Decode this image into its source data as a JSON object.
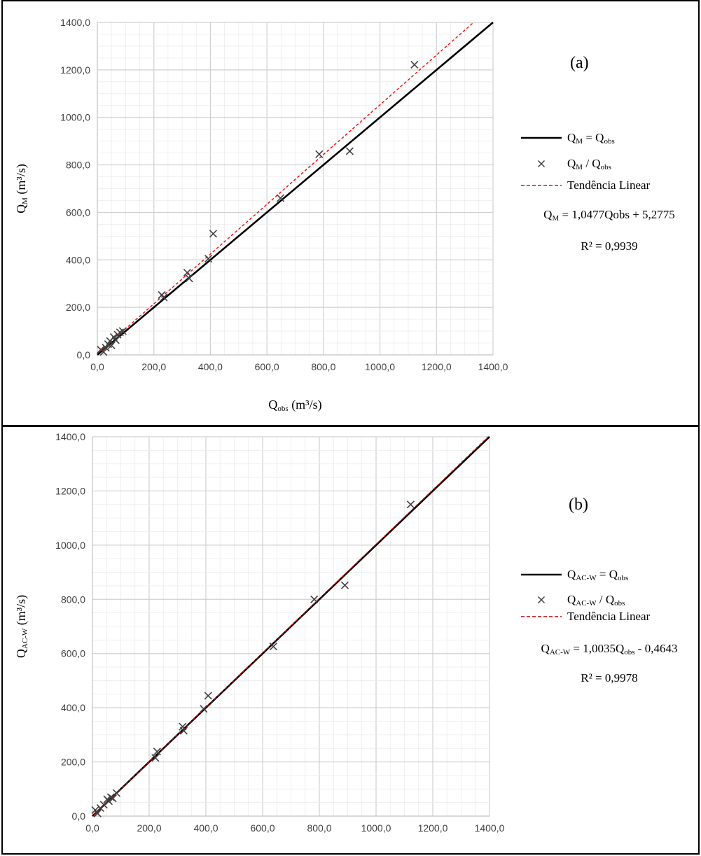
{
  "chart_data": [
    {
      "type": "scatter",
      "panel_label": "(a)",
      "x_axis": {
        "label_main": "Q",
        "label_sub": "obs",
        "label_unit": " (m³/s)",
        "range": [
          0,
          1400
        ],
        "ticks": [
          "0,0",
          "200,0",
          "400,0",
          "600,0",
          "800,0",
          "1000,0",
          "1200,0",
          "1400,0"
        ]
      },
      "y_axis": {
        "label_main": "Q",
        "label_sub": "M",
        "label_unit": " (m³/s)",
        "range": [
          0,
          1400
        ],
        "ticks": [
          "0,0",
          "200,0",
          "400,0",
          "600,0",
          "800,0",
          "1000,0",
          "1200,0",
          "1400,0"
        ]
      },
      "grid": true,
      "legend": {
        "identity": {
          "main": "Q",
          "sub": "M",
          "rest": " = Q",
          "sub2": "obs"
        },
        "points": {
          "main": "Q",
          "sub": "M",
          "rest": " / Q",
          "sub2": "obs"
        },
        "trend": "Tendência Linear",
        "equation": {
          "main": "Q",
          "sub": "M",
          "rest": " = 1,0477Qobs + 5,2775"
        },
        "r2": "R² = 0,9939"
      },
      "identity_line": {
        "slope": 1,
        "intercept": 0,
        "color": "#000000"
      },
      "trend_line": {
        "slope": 1.0477,
        "intercept": 5.2775,
        "color": "#ff0000"
      },
      "points": [
        {
          "x": 12,
          "y": 22
        },
        {
          "x": 22,
          "y": 12
        },
        {
          "x": 30,
          "y": 30
        },
        {
          "x": 38,
          "y": 45
        },
        {
          "x": 45,
          "y": 58
        },
        {
          "x": 50,
          "y": 40
        },
        {
          "x": 58,
          "y": 75
        },
        {
          "x": 65,
          "y": 62
        },
        {
          "x": 72,
          "y": 85
        },
        {
          "x": 80,
          "y": 95
        },
        {
          "x": 90,
          "y": 100
        },
        {
          "x": 228,
          "y": 252
        },
        {
          "x": 235,
          "y": 242
        },
        {
          "x": 318,
          "y": 346
        },
        {
          "x": 325,
          "y": 322
        },
        {
          "x": 393,
          "y": 405
        },
        {
          "x": 410,
          "y": 510
        },
        {
          "x": 648,
          "y": 660
        },
        {
          "x": 785,
          "y": 845
        },
        {
          "x": 893,
          "y": 858
        },
        {
          "x": 1122,
          "y": 1222
        }
      ]
    },
    {
      "type": "scatter",
      "panel_label": "(b)",
      "x_axis": {
        "label_main": "Q",
        "label_sub": "obs",
        "label_unit": " (m³/s)",
        "range": [
          0,
          1400
        ],
        "ticks": [
          "0,0",
          "200,0",
          "400,0",
          "600,0",
          "800,0",
          "1000,0",
          "1200,0",
          "1400,0"
        ]
      },
      "y_axis": {
        "label_main": "Q",
        "label_sub": "AC-W",
        "label_unit": " (m³/s)",
        "range": [
          0,
          1400
        ],
        "ticks": [
          "0,0",
          "200,0",
          "400,0",
          "600,0",
          "800,0",
          "1000,0",
          "1200,0",
          "1400,0"
        ]
      },
      "grid": true,
      "legend": {
        "identity": {
          "main": "Q",
          "sub": "AC-W",
          "rest": " = Q",
          "sub2": "obs"
        },
        "points": {
          "main": "Q",
          "sub": "AC-W",
          "rest": " / Q",
          "sub2": "obs"
        },
        "trend": "Tendência Linear",
        "equation": {
          "main": "Q",
          "sub": "AC-W",
          "rest": " = 1,0035Q",
          "sub2": "obs",
          "rest2": " - 0,4643"
        },
        "r2": "R² = 0,9978"
      },
      "identity_line": {
        "slope": 1,
        "intercept": 0,
        "color": "#000000"
      },
      "trend_line": {
        "slope": 1.0035,
        "intercept": -0.4643,
        "color": "#c00000"
      },
      "points": [
        {
          "x": 10,
          "y": 22
        },
        {
          "x": 18,
          "y": 10
        },
        {
          "x": 28,
          "y": 30
        },
        {
          "x": 40,
          "y": 42
        },
        {
          "x": 52,
          "y": 62
        },
        {
          "x": 58,
          "y": 55
        },
        {
          "x": 65,
          "y": 70
        },
        {
          "x": 72,
          "y": 65
        },
        {
          "x": 85,
          "y": 85
        },
        {
          "x": 222,
          "y": 215
        },
        {
          "x": 228,
          "y": 238
        },
        {
          "x": 318,
          "y": 330
        },
        {
          "x": 322,
          "y": 315
        },
        {
          "x": 392,
          "y": 396
        },
        {
          "x": 408,
          "y": 444
        },
        {
          "x": 638,
          "y": 626
        },
        {
          "x": 782,
          "y": 800
        },
        {
          "x": 890,
          "y": 852
        },
        {
          "x": 1122,
          "y": 1150
        }
      ]
    }
  ]
}
